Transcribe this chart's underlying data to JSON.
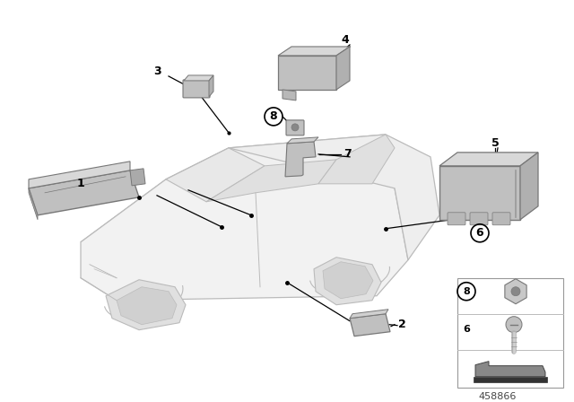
{
  "bg_color": "#ffffff",
  "fig_width": 6.4,
  "fig_height": 4.48,
  "dpi": 100,
  "watermark": "458866",
  "line_color": "#000000",
  "car_edge_color": "#bbbbbb",
  "part_color": "#b8b8b8",
  "part_edge": "#777777"
}
